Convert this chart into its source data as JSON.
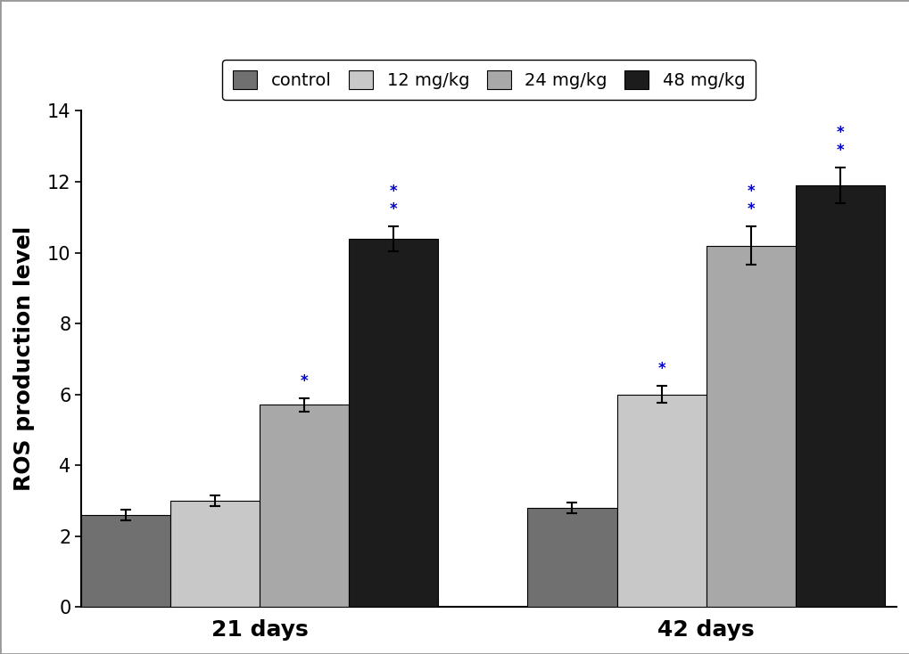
{
  "groups": [
    "21 days",
    "42 days"
  ],
  "categories": [
    "control",
    "12 mg/kg",
    "24 mg/kg",
    "48 mg/kg"
  ],
  "values": [
    [
      2.6,
      3.0,
      5.7,
      10.4
    ],
    [
      2.8,
      6.0,
      10.2,
      11.9
    ]
  ],
  "errors": [
    [
      0.15,
      0.15,
      0.2,
      0.35
    ],
    [
      0.15,
      0.25,
      0.55,
      0.5
    ]
  ],
  "bar_colors": [
    "#707070",
    "#c8c8c8",
    "#a8a8a8",
    "#1c1c1c"
  ],
  "bar_edgecolor": "#000000",
  "ylabel": "ROS production level",
  "ylim": [
    0,
    14
  ],
  "yticks": [
    0,
    2,
    4,
    6,
    8,
    10,
    12,
    14
  ],
  "legend_labels": [
    "control",
    "12 mg/kg",
    "24 mg/kg",
    "48 mg/kg"
  ],
  "sig_stars": {
    "21_days": [
      "",
      "",
      "*",
      "**"
    ],
    "42_days": [
      "",
      "*",
      "**",
      "**"
    ]
  },
  "sig_colors": {
    "21_days": [
      "",
      "",
      "#0000cc",
      "#0000cc"
    ],
    "42_days": [
      "",
      "#0000cc",
      "#0000cc",
      "#0000cc"
    ]
  },
  "background_color": "#ffffff",
  "axis_fontsize": 18,
  "tick_fontsize": 15,
  "legend_fontsize": 14,
  "bar_width": 0.15,
  "group_centers": [
    0.35,
    1.1
  ]
}
